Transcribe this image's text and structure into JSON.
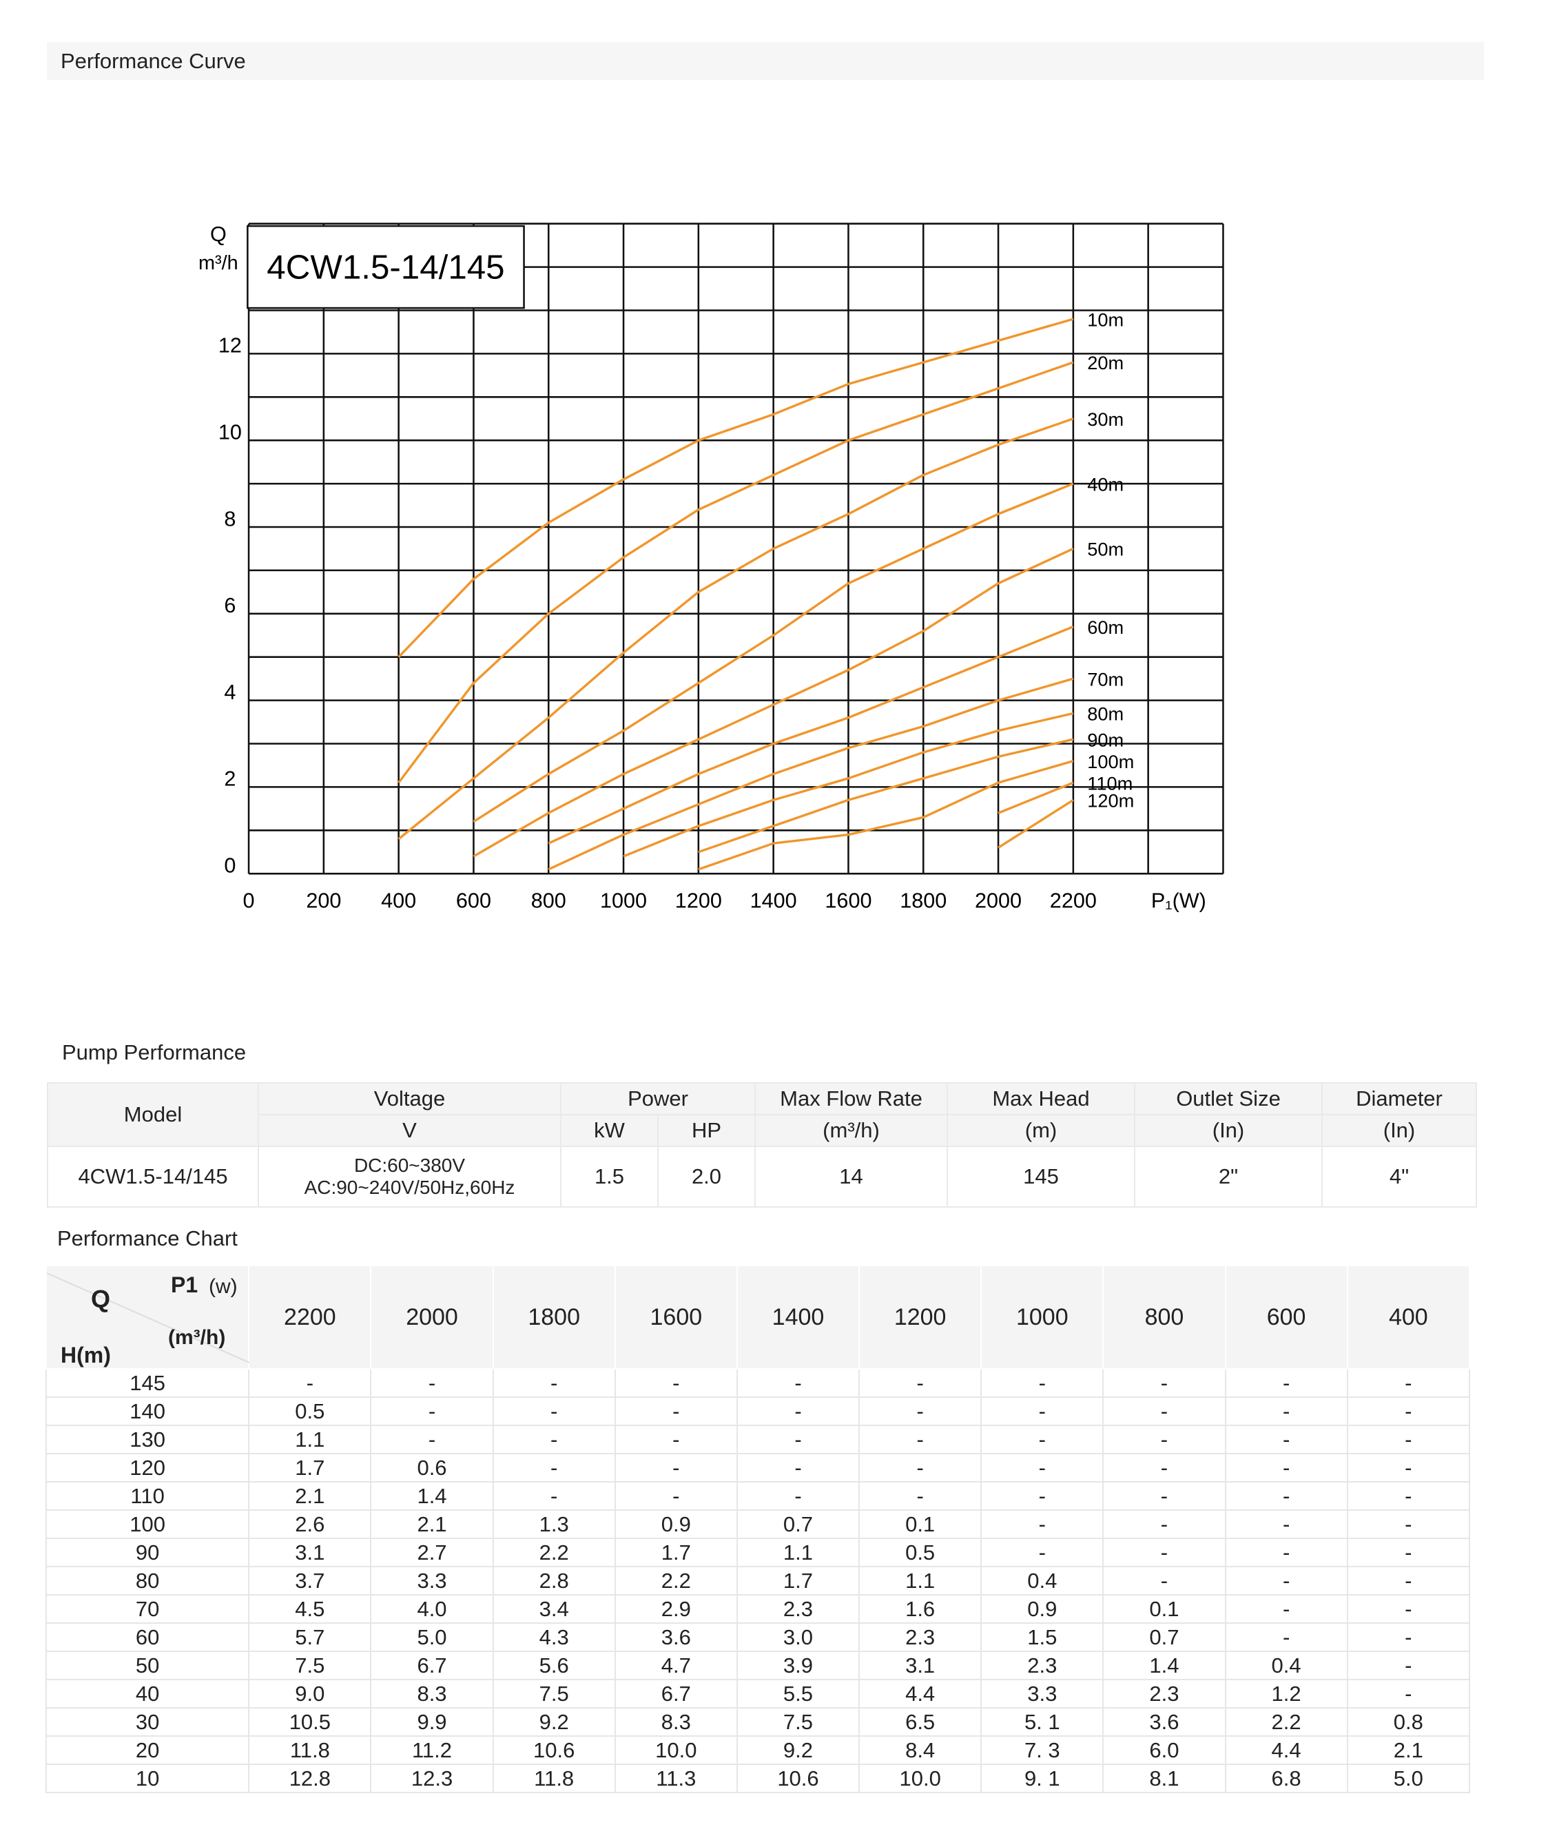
{
  "header": {
    "title": "Performance Curve"
  },
  "chart_data": {
    "type": "line",
    "annotation": "4CW1.5-14/145",
    "ylabel": "Q",
    "yunit": "m³/h",
    "xlabel": "P₁(W)",
    "xlim": [
      0,
      2600
    ],
    "ylim": [
      0,
      15
    ],
    "xticks": [
      0,
      200,
      400,
      600,
      800,
      1000,
      1200,
      1400,
      1600,
      1800,
      2000,
      2200
    ],
    "yticks": [
      0,
      2,
      4,
      6,
      8,
      10,
      12
    ],
    "xgrid": [
      0,
      200,
      400,
      600,
      800,
      1000,
      1200,
      1400,
      1600,
      1800,
      2000,
      2200,
      2400,
      2600
    ],
    "ygrid": [
      0,
      1,
      2,
      3,
      4,
      5,
      6,
      7,
      8,
      9,
      10,
      11,
      12,
      13,
      14,
      15
    ],
    "x": [
      400,
      600,
      800,
      1000,
      1200,
      1400,
      1600,
      1800,
      2000,
      2200
    ],
    "series": [
      {
        "name": "10m",
        "color": "#f0962c",
        "values": [
          5.0,
          6.8,
          8.1,
          9.1,
          10.0,
          10.6,
          11.3,
          11.8,
          12.3,
          12.8
        ]
      },
      {
        "name": "20m",
        "color": "#f0962c",
        "values": [
          2.1,
          4.4,
          6.0,
          7.3,
          8.4,
          9.2,
          10.0,
          10.6,
          11.2,
          11.8
        ]
      },
      {
        "name": "30m",
        "color": "#f0962c",
        "values": [
          0.8,
          2.2,
          3.6,
          5.1,
          6.5,
          7.5,
          8.3,
          9.2,
          9.9,
          10.5
        ]
      },
      {
        "name": "40m",
        "color": "#f0962c",
        "values": [
          null,
          1.2,
          2.3,
          3.3,
          4.4,
          5.5,
          6.7,
          7.5,
          8.3,
          9.0
        ]
      },
      {
        "name": "50m",
        "color": "#f0962c",
        "values": [
          null,
          0.4,
          1.4,
          2.3,
          3.1,
          3.9,
          4.7,
          5.6,
          6.7,
          7.5
        ]
      },
      {
        "name": "60m",
        "color": "#f0962c",
        "values": [
          null,
          null,
          0.7,
          1.5,
          2.3,
          3.0,
          3.6,
          4.3,
          5.0,
          5.7
        ]
      },
      {
        "name": "70m",
        "color": "#f0962c",
        "values": [
          null,
          null,
          0.1,
          0.9,
          1.6,
          2.3,
          2.9,
          3.4,
          4.0,
          4.5
        ]
      },
      {
        "name": "80m",
        "color": "#f0962c",
        "values": [
          null,
          null,
          null,
          0.4,
          1.1,
          1.7,
          2.2,
          2.8,
          3.3,
          3.7
        ]
      },
      {
        "name": "90m",
        "color": "#f0962c",
        "values": [
          null,
          null,
          null,
          null,
          0.5,
          1.1,
          1.7,
          2.2,
          2.7,
          3.1
        ]
      },
      {
        "name": "100m",
        "color": "#f0962c",
        "values": [
          null,
          null,
          null,
          null,
          0.1,
          0.7,
          0.9,
          1.3,
          2.1,
          2.6
        ]
      },
      {
        "name": "110m",
        "color": "#f0962c",
        "values": [
          null,
          null,
          null,
          null,
          null,
          null,
          null,
          null,
          1.4,
          2.1
        ]
      },
      {
        "name": "120m",
        "color": "#f0962c",
        "values": [
          null,
          null,
          null,
          null,
          null,
          null,
          null,
          null,
          0.6,
          1.7
        ]
      }
    ]
  },
  "pump_performance": {
    "title": "Pump Performance",
    "columns": [
      "Model",
      "Voltage",
      "Power",
      "Max Flow  Rate",
      "Max Head",
      "Outlet Size",
      "Diameter"
    ],
    "sub_columns": [
      "V",
      "kW",
      "HP",
      "(m³/h)",
      "(m)",
      "(In)",
      "(In)"
    ],
    "row": [
      "4CW1.5-14/145",
      "DC:60~380V",
      "AC:90~240V/50Hz,60Hz",
      "1.5",
      "2.0",
      "14",
      "145",
      "2\"",
      "4\""
    ]
  },
  "performance_chart": {
    "title": "Performance Chart",
    "corner": {
      "q": "Q",
      "p1": "P1",
      "p1_unit": "(w)",
      "q_unit": "(m³/h)",
      "h": "H(m)"
    },
    "columns": [
      "2200",
      "2000",
      "1800",
      "1600",
      "1400",
      "1200",
      "1000",
      "800",
      "600",
      "400"
    ],
    "rows": [
      [
        "145",
        "-",
        "-",
        "-",
        "-",
        "-",
        "-",
        "-",
        "-",
        "-",
        "-"
      ],
      [
        "140",
        "0.5",
        "-",
        "-",
        "-",
        "-",
        "-",
        "-",
        "-",
        "-",
        "-"
      ],
      [
        "130",
        "1.1",
        "-",
        "-",
        "-",
        "-",
        "-",
        "-",
        "-",
        "-",
        "-"
      ],
      [
        "120",
        "1.7",
        "0.6",
        "-",
        "-",
        "-",
        "-",
        "-",
        "-",
        "-",
        "-"
      ],
      [
        "110",
        "2.1",
        "1.4",
        "-",
        "-",
        "-",
        "-",
        "-",
        "-",
        "-",
        "-"
      ],
      [
        "100",
        "2.6",
        "2.1",
        "1.3",
        "0.9",
        "0.7",
        "0.1",
        "-",
        "-",
        "-",
        "-"
      ],
      [
        "90",
        "3.1",
        "2.7",
        "2.2",
        "1.7",
        "1.1",
        "0.5",
        "-",
        "-",
        "-",
        "-"
      ],
      [
        "80",
        "3.7",
        "3.3",
        "2.8",
        "2.2",
        "1.7",
        "1.1",
        "0.4",
        "-",
        "-",
        "-"
      ],
      [
        "70",
        "4.5",
        "4.0",
        "3.4",
        "2.9",
        "2.3",
        "1.6",
        "0.9",
        "0.1",
        "-",
        "-"
      ],
      [
        "60",
        "5.7",
        "5.0",
        "4.3",
        "3.6",
        "3.0",
        "2.3",
        "1.5",
        "0.7",
        "-",
        "-"
      ],
      [
        "50",
        "7.5",
        "6.7",
        "5.6",
        "4.7",
        "3.9",
        "3.1",
        "2.3",
        "1.4",
        "0.4",
        "-"
      ],
      [
        "40",
        "9.0",
        "8.3",
        "7.5",
        "6.7",
        "5.5",
        "4.4",
        "3.3",
        "2.3",
        "1.2",
        "-"
      ],
      [
        "30",
        "10.5",
        "9.9",
        "9.2",
        "8.3",
        "7.5",
        "6.5",
        "5. 1",
        "3.6",
        "2.2",
        "0.8"
      ],
      [
        "20",
        "11.8",
        "11.2",
        "10.6",
        "10.0",
        "9.2",
        "8.4",
        "7. 3",
        "6.0",
        "4.4",
        "2.1"
      ],
      [
        "10",
        "12.8",
        "12.3",
        "11.8",
        "11.3",
        "10.6",
        "10.0",
        "9. 1",
        "8.1",
        "6.8",
        "5.0"
      ]
    ]
  }
}
